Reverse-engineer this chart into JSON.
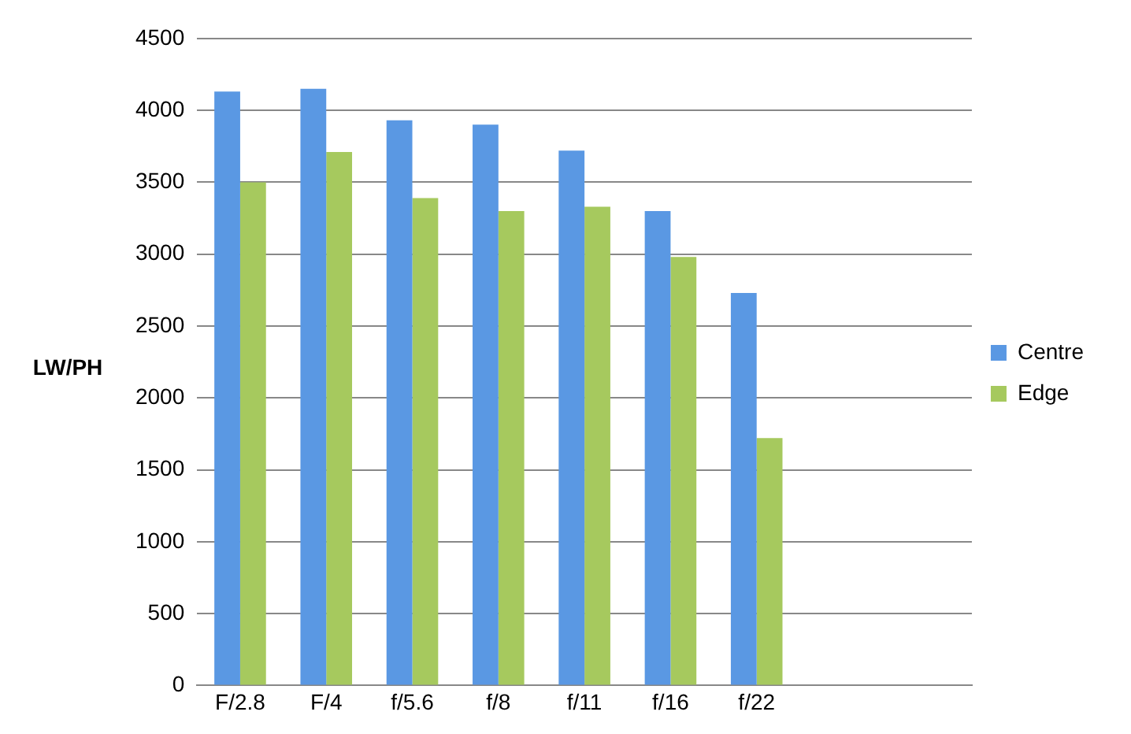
{
  "chart_data": {
    "type": "bar",
    "ylabel": "LW/PH",
    "categories": [
      "F/2.8",
      "F/4",
      "f/5.6",
      "f/8",
      "f/11",
      "f/16",
      "f/22",
      null,
      null
    ],
    "series": [
      {
        "name": "Centre",
        "color": "#5a98e3",
        "values": [
          4130,
          4150,
          3930,
          3900,
          3720,
          3300,
          2730,
          null,
          null
        ]
      },
      {
        "name": "Edge",
        "color": "#a6c95e",
        "values": [
          3500,
          3710,
          3390,
          3300,
          3330,
          2980,
          1720,
          null,
          null
        ]
      }
    ],
    "ylim": [
      0,
      4500
    ],
    "yticks": [
      0,
      500,
      1000,
      1500,
      2000,
      2500,
      3000,
      3500,
      4000,
      4500
    ],
    "grid": "y",
    "legend": "right"
  }
}
